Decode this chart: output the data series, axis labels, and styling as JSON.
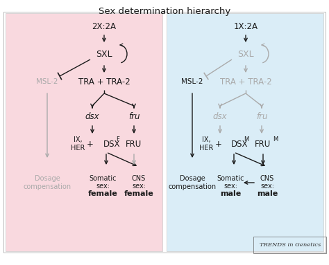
{
  "title": "Sex determination hierarchy",
  "bg_color_left": "#f9d9df",
  "bg_color_right": "#daedf7",
  "bg_color_outer": "#ffffff",
  "black": "#1a1a1a",
  "gray": "#aaaaaa",
  "dark_gray": "#888888",
  "trends_text": "TRENDS in Genetics",
  "left": {
    "top_label": "2X:2A",
    "sxl": "SXL",
    "tra": "TRA + TRA-2",
    "msl2": "MSL-2",
    "dsx": "dsx",
    "fru": "fru",
    "ix_her": "IX,\nHER",
    "dsx_label": "DSX",
    "dsx_super": "F",
    "fru_label": "FRU",
    "dosage": "Dosage\ncompensation",
    "somatic_line1": "Somatic",
    "somatic_line2": "sex:",
    "somatic_line3": "female",
    "cns_line1": "CNS",
    "cns_line2": "sex:",
    "cns_line3": "female"
  },
  "right": {
    "top_label": "1X:2A",
    "sxl": "SXL",
    "tra": "TRA + TRA-2",
    "msl2": "MSL-2",
    "dsx": "dsx",
    "fru": "fru",
    "ix_her": "IX,\nHER",
    "dsx_label": "DSX",
    "dsx_super": "M",
    "fru_label": "FRU",
    "fru_super": "M",
    "dosage": "Dosage\ncompensation",
    "somatic_line1": "Somatic",
    "somatic_line2": "sex:",
    "somatic_line3": "male",
    "cns_line1": "CNS",
    "cns_line2": "sex:",
    "cns_line3": "male"
  }
}
